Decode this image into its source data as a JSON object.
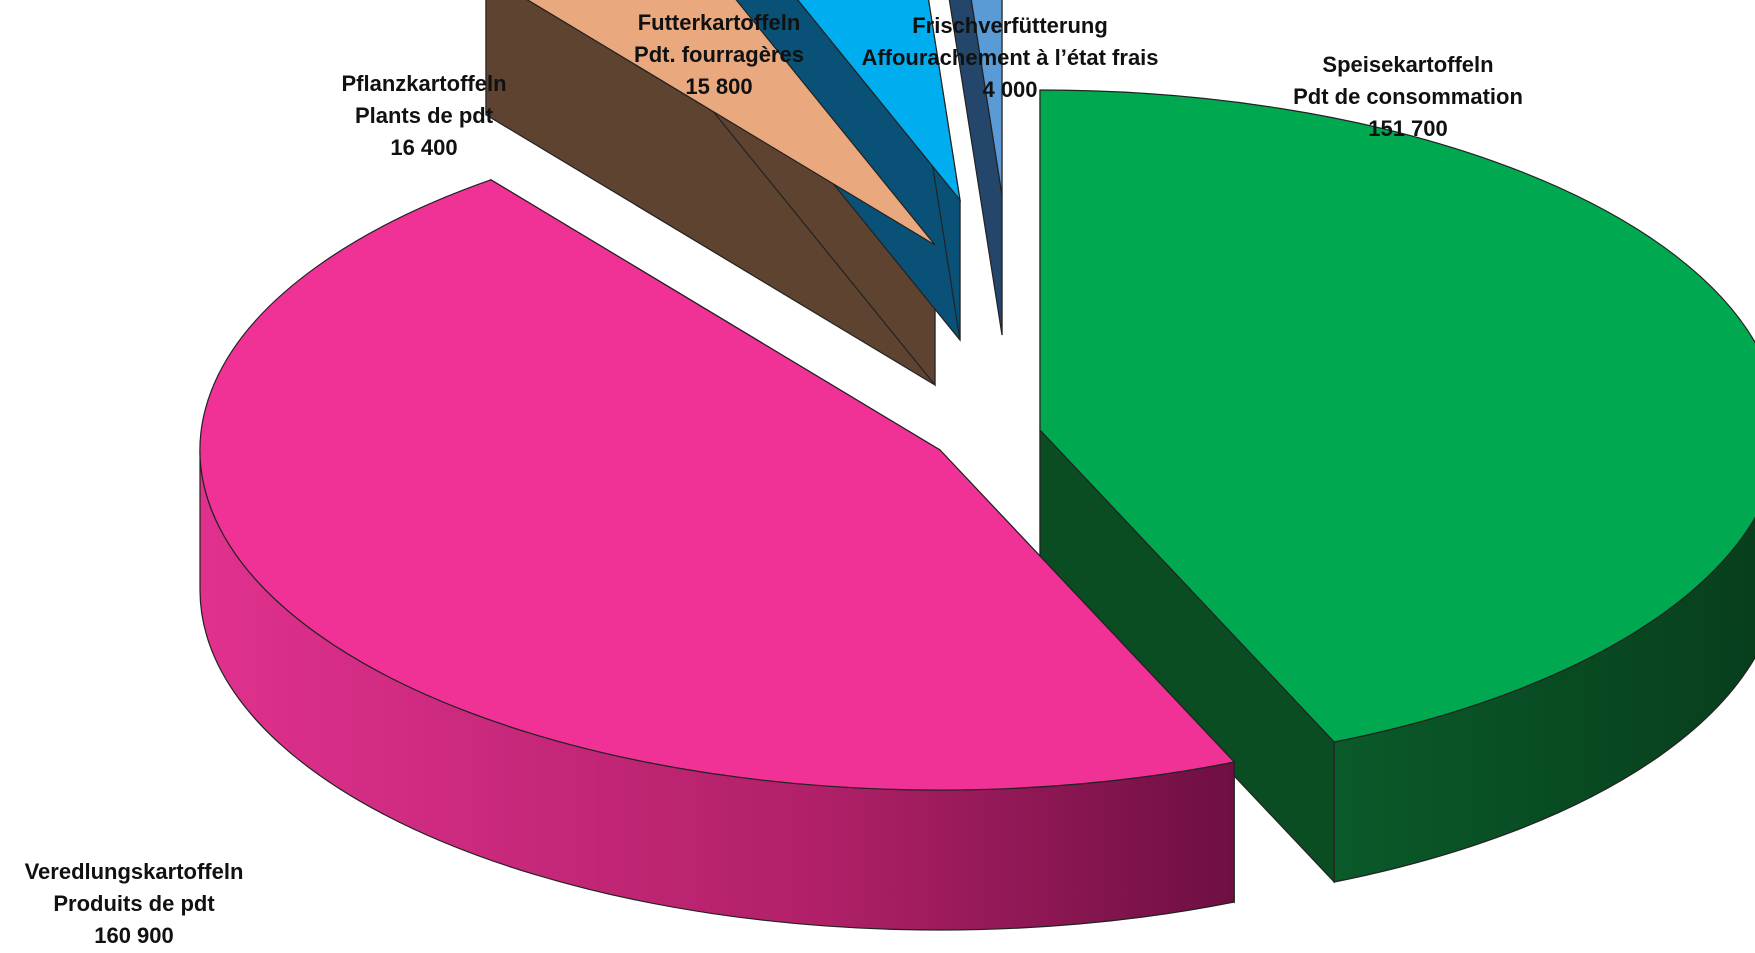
{
  "chart_data": {
    "type": "pie",
    "title": "",
    "slices": [
      {
        "name_de": "Speisekartoffeln",
        "name_fr": "Pdt de consommation",
        "value": 151700,
        "value_label": "151 700",
        "color": "#00A94F",
        "side_color": "#0B4D23"
      },
      {
        "name_de": "Veredlungskartoffeln",
        "name_fr": "Produits de pdt",
        "value": 160900,
        "value_label": "160 900",
        "color": "#F03296",
        "side_color": "#B02068"
      },
      {
        "name_de": "Pflanzkartoffeln",
        "name_fr": "Plants de pdt",
        "value": 16400,
        "value_label": "16 400",
        "color": "#E9A87E",
        "side_color": "#5E4330"
      },
      {
        "name_de": "Futterkartoffeln",
        "name_fr": "Pdt. fourragères",
        "value": 15800,
        "value_label": "15 800",
        "color": "#00AEEF",
        "side_color": "#0A5177"
      },
      {
        "name_de": "Frischverfütterung",
        "name_fr": "Affourachement à l’état frais",
        "value": 4000,
        "value_label": "4 000",
        "color": "#5B9BD5",
        "side_color": "#24466B"
      }
    ]
  }
}
